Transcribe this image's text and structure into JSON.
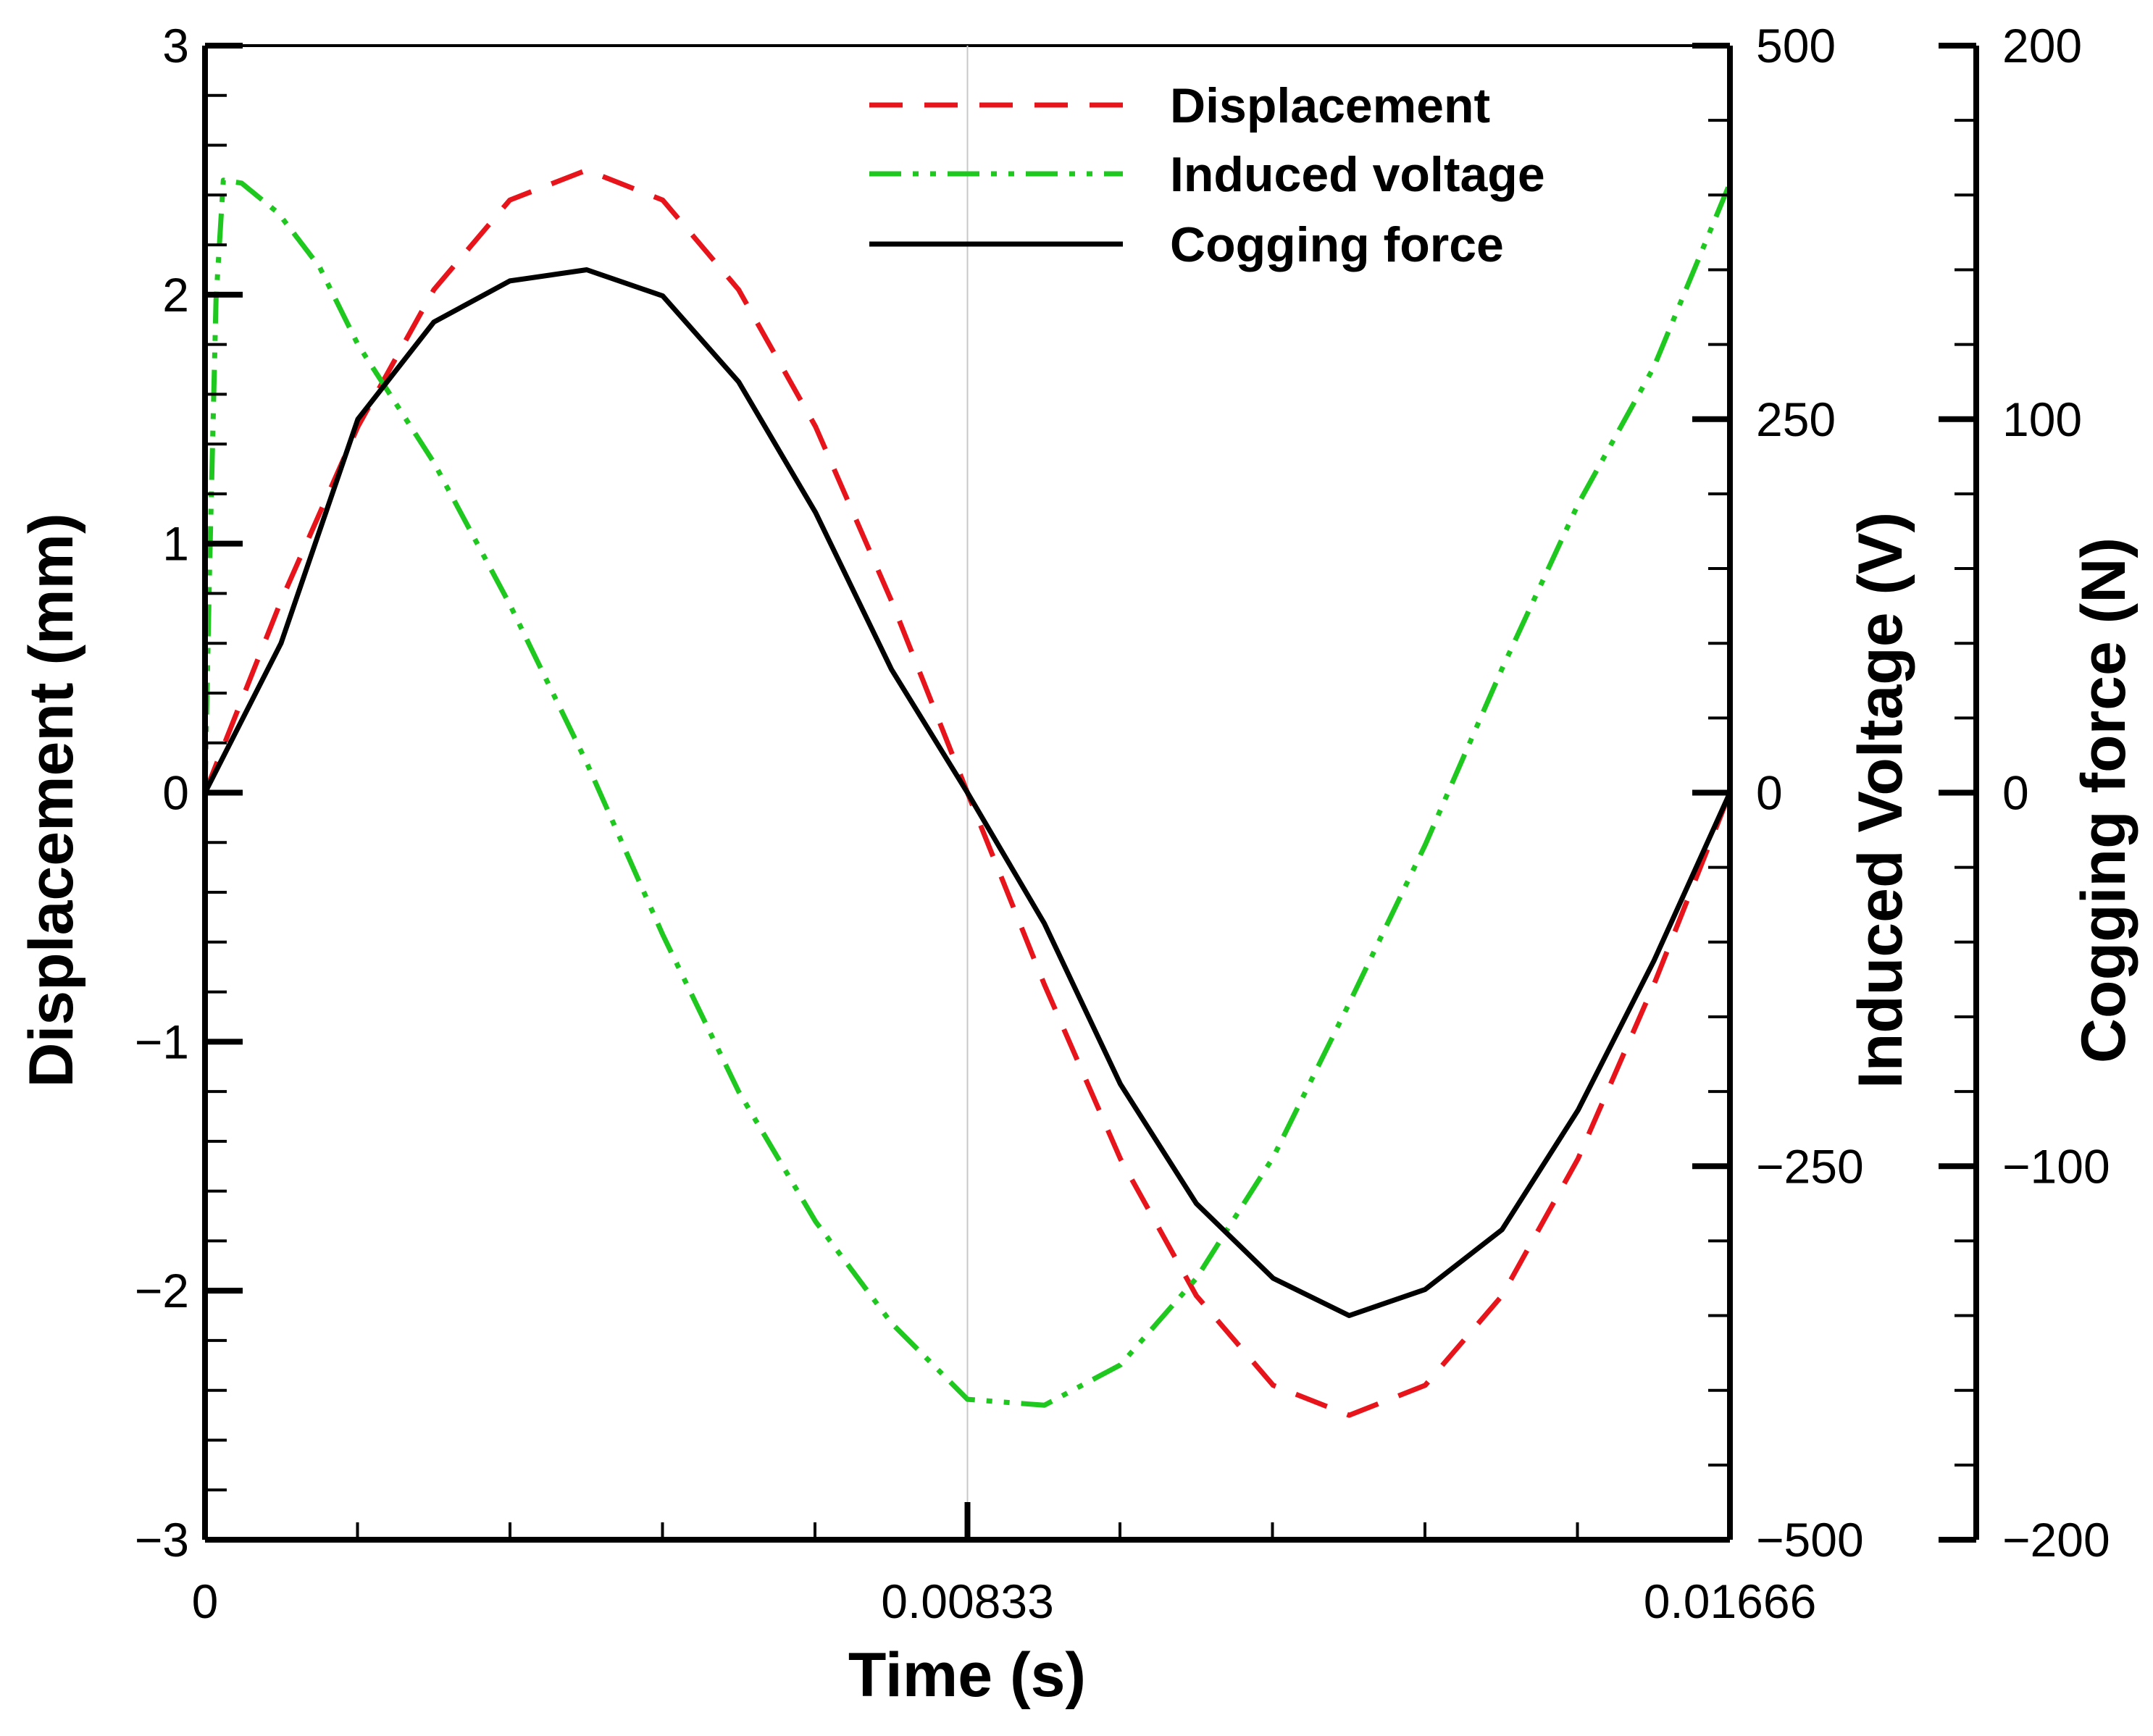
{
  "chart_data": {
    "type": "line",
    "xlabel": "Time (s)",
    "x_ticks": [
      0,
      0.00833,
      0.01666
    ],
    "x_tick_labels": [
      "0",
      "0.00833",
      "0.01666"
    ],
    "xlim": [
      0,
      0.01666
    ],
    "axes": [
      {
        "id": "disp",
        "label": "Displacement (mm)",
        "lim": [
          -3,
          3
        ],
        "ticks": [
          -3,
          -2,
          -1,
          0,
          1,
          2,
          3
        ],
        "tick_labels": [
          "−3",
          "−2",
          "−1",
          "0",
          "1",
          "2",
          "3"
        ],
        "side": "left"
      },
      {
        "id": "volt",
        "label": "Induced Voltage (V)",
        "lim": [
          -500,
          500
        ],
        "ticks": [
          -500,
          -250,
          0,
          250,
          500
        ],
        "tick_labels": [
          "−500",
          "−250",
          "0",
          "250",
          "500"
        ],
        "side": "right"
      },
      {
        "id": "force",
        "label": "Cogging force (N)",
        "lim": [
          -200,
          200
        ],
        "ticks": [
          -200,
          -100,
          0,
          100,
          200
        ],
        "tick_labels": [
          "−200",
          "−100",
          "0",
          "100",
          "200"
        ],
        "side": "right-outer"
      }
    ],
    "series": [
      {
        "name": "Displacement",
        "axis": "disp",
        "color": "#e8141c",
        "style": "dashed",
        "x": [
          0,
          0.00083,
          0.00167,
          0.0025,
          0.00333,
          0.00417,
          0.005,
          0.00583,
          0.00667,
          0.0075,
          0.00833,
          0.00917,
          0.01,
          0.01083,
          0.01167,
          0.0125,
          0.01333,
          0.01417,
          0.015,
          0.01583,
          0.01666
        ],
        "y": [
          0,
          0.77,
          1.47,
          2.02,
          2.38,
          2.5,
          2.38,
          2.02,
          1.47,
          0.77,
          0,
          -0.77,
          -1.47,
          -2.02,
          -2.38,
          -2.5,
          -2.38,
          -2.02,
          -1.47,
          -0.77,
          0
        ]
      },
      {
        "name": "Induced voltage",
        "axis": "volt",
        "color": "#1ec81e",
        "style": "dashdotdot",
        "x": [
          0,
          5e-05,
          0.00012,
          0.0002,
          0.0004,
          0.0008,
          0.00125,
          0.00167,
          0.0025,
          0.00333,
          0.00417,
          0.005,
          0.00583,
          0.00667,
          0.0075,
          0.00833,
          0.00917,
          0.01,
          0.01083,
          0.01167,
          0.0125,
          0.01333,
          0.01417,
          0.015,
          0.01583,
          0.01666
        ],
        "y": [
          0,
          150,
          330,
          410,
          408,
          388,
          352,
          300,
          221,
          126,
          20,
          -95,
          -200,
          -287,
          -355,
          -406,
          -410,
          -383,
          -325,
          -244,
          -141,
          -35,
          83,
          193,
          285,
          408
        ]
      },
      {
        "name": "Cogging force",
        "axis": "force",
        "color": "#000000",
        "style": "solid",
        "x": [
          0,
          0.00083,
          0.00167,
          0.0025,
          0.00333,
          0.00417,
          0.005,
          0.00583,
          0.00667,
          0.0075,
          0.00833,
          0.00917,
          0.01,
          0.01083,
          0.01167,
          0.0125,
          0.01333,
          0.01417,
          0.015,
          0.01583,
          0.01666
        ],
        "y": [
          0,
          40,
          100,
          126,
          137,
          140,
          133,
          110,
          75,
          33,
          0,
          -35,
          -78,
          -110,
          -130,
          -140,
          -133,
          -117,
          -85,
          -45,
          0
        ]
      }
    ],
    "legend": {
      "position": "top-right",
      "entries": [
        "Displacement",
        "Induced voltage",
        "Cogging force"
      ]
    },
    "grid": "vertical line at 0.00833 only"
  }
}
